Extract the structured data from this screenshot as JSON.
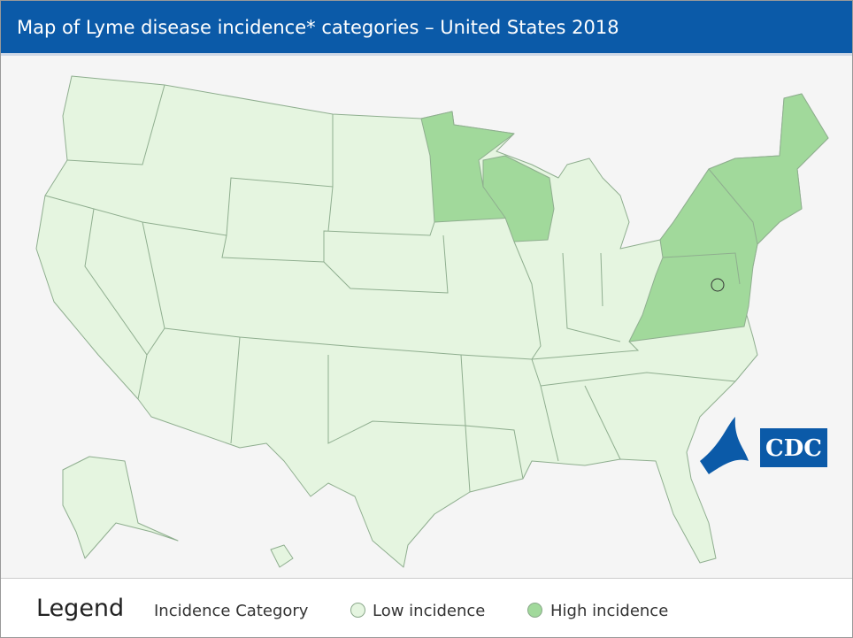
{
  "header": {
    "title": "Map of Lyme disease incidence* categories – United States 2018"
  },
  "logo": {
    "text": "CDC"
  },
  "legend": {
    "heading": "Legend",
    "title": "Incidence Category",
    "items": [
      {
        "label": "Low incidence",
        "color": "#e5f5e0"
      },
      {
        "label": "High incidence",
        "color": "#a1d99b"
      }
    ]
  }
}
